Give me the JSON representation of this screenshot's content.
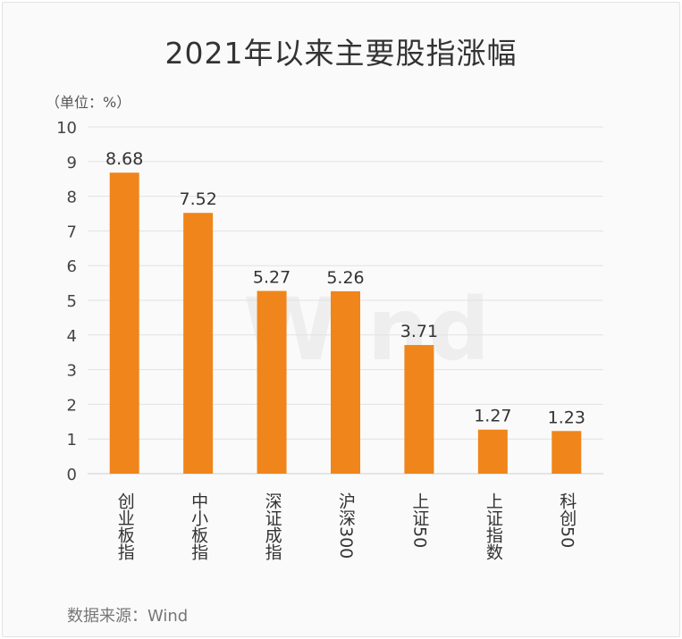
{
  "title": "2021年以来主要股指涨幅",
  "unit_label": "（单位：%）",
  "source": "数据来源：Wind",
  "watermark": "Wind",
  "colors": {
    "bar": "#f0851b",
    "grid": "#e2e2e2",
    "axis": "#cfcfcf"
  },
  "chart_data": {
    "type": "bar",
    "categories": [
      "创业板指",
      "中小板指",
      "深证成指",
      "沪深300",
      "上证50",
      "上证指数",
      "科创50"
    ],
    "values": [
      8.68,
      7.52,
      5.27,
      5.26,
      3.71,
      1.27,
      1.23
    ],
    "value_labels": [
      "8.68",
      "7.52",
      "5.27",
      "5.26",
      "3.71",
      "1.27",
      "1.23"
    ],
    "ylim": [
      0,
      10
    ],
    "yticks": [
      "0",
      "1",
      "2",
      "3",
      "4",
      "5",
      "6",
      "7",
      "8",
      "9",
      "10"
    ],
    "grid": true,
    "legend": "none"
  }
}
